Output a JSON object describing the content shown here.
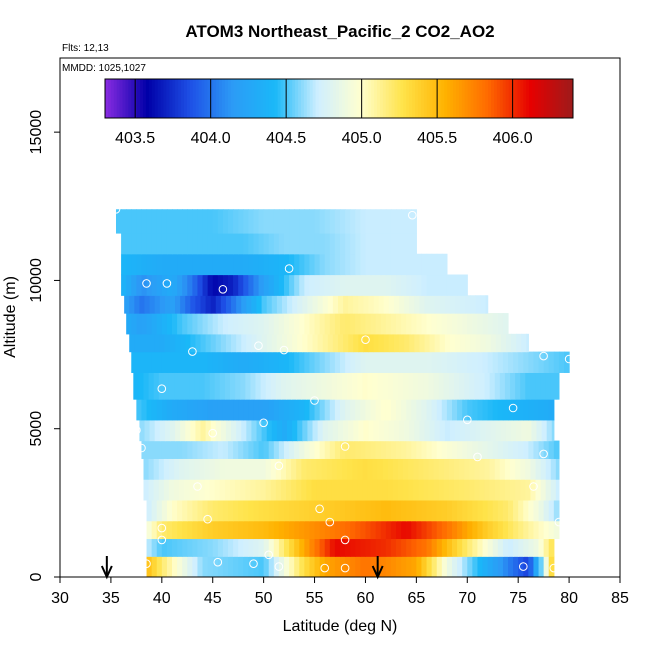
{
  "chart_data": {
    "type": "heatmap",
    "title": "ATOM3 Northeast_Pacific_2 CO2_AO2",
    "annotations": {
      "flights": "Flts: 12,13",
      "dates": "MMDD: 1025,1027"
    },
    "xlabel": "Latitude (deg N)",
    "ylabel": "Altitude (m)",
    "xlim": [
      30,
      85
    ],
    "ylim": [
      0,
      17500
    ],
    "x_ticks": [
      "30",
      "35",
      "40",
      "45",
      "50",
      "55",
      "60",
      "65",
      "70",
      "75",
      "80",
      "85"
    ],
    "y_ticks": [
      "0",
      "5000",
      "10000",
      "15000"
    ],
    "colorbar": {
      "range": [
        403.3,
        406.4
      ],
      "tick_labels": [
        "403.5",
        "404.0",
        "404.5",
        "405.0",
        "405.5",
        "406.0"
      ],
      "tick_values": [
        403.5,
        404.0,
        404.5,
        405.0,
        405.5,
        406.0
      ],
      "segment_boundaries": [
        403.5,
        404.0,
        404.5,
        405.0,
        405.5,
        406.0
      ],
      "palette": [
        "#8A2BE2",
        "#0000A8",
        "#1E50E6",
        "#2C9BF6",
        "#1AB8F8",
        "#CFEFFF",
        "#FFFFD0",
        "#FFE34A",
        "#FFB200",
        "#FF6A00",
        "#E60000",
        "#9E1B1B"
      ]
    },
    "bands": [
      {
        "alt": [
          0,
          700
        ],
        "lat": [
          38.5,
          78.5
        ],
        "profile": [
          [
            38.5,
            405.5
          ],
          [
            40,
            405.2
          ],
          [
            44,
            404.6
          ],
          [
            50,
            404.5
          ],
          [
            54,
            405.3
          ],
          [
            56,
            405.6
          ],
          [
            60,
            405.8
          ],
          [
            65,
            405.6
          ],
          [
            68,
            404.9
          ],
          [
            72,
            404.3
          ],
          [
            76,
            403.8
          ],
          [
            77.5,
            404.7
          ],
          [
            78.5,
            405.5
          ]
        ]
      },
      {
        "alt": [
          700,
          1300
        ],
        "lat": [
          38.5,
          78.5
        ],
        "profile": [
          [
            38.5,
            404.7
          ],
          [
            40,
            404.5
          ],
          [
            45,
            404.6
          ],
          [
            50,
            404.8
          ],
          [
            54,
            405.6
          ],
          [
            57,
            406.1
          ],
          [
            62,
            406.0
          ],
          [
            66,
            405.8
          ],
          [
            70,
            405.2
          ],
          [
            74,
            404.7
          ],
          [
            77,
            404.9
          ],
          [
            78.5,
            405.3
          ]
        ]
      },
      {
        "alt": [
          1300,
          1900
        ],
        "lat": [
          38.5,
          79
        ],
        "profile": [
          [
            38.5,
            404.9
          ],
          [
            40,
            405.2
          ],
          [
            45,
            405.4
          ],
          [
            50,
            405.5
          ],
          [
            55,
            405.7
          ],
          [
            60,
            405.9
          ],
          [
            64,
            406.1
          ],
          [
            68,
            405.8
          ],
          [
            72,
            405.4
          ],
          [
            76,
            405.1
          ],
          [
            79,
            404.9
          ]
        ]
      },
      {
        "alt": [
          1900,
          2600
        ],
        "lat": [
          38.5,
          79
        ],
        "profile": [
          [
            38.5,
            404.7
          ],
          [
            41,
            405.0
          ],
          [
            45,
            405.2
          ],
          [
            50,
            405.3
          ],
          [
            56,
            405.4
          ],
          [
            62,
            405.5
          ],
          [
            68,
            405.4
          ],
          [
            74,
            405.2
          ],
          [
            77,
            404.9
          ],
          [
            79,
            404.6
          ]
        ]
      },
      {
        "alt": [
          2600,
          3300
        ],
        "lat": [
          38.2,
          79
        ],
        "profile": [
          [
            38.2,
            404.7
          ],
          [
            41,
            404.9
          ],
          [
            45,
            405.0
          ],
          [
            50,
            405.1
          ],
          [
            55,
            405.3
          ],
          [
            62,
            405.3
          ],
          [
            70,
            405.2
          ],
          [
            76,
            405.1
          ],
          [
            79,
            404.7
          ]
        ]
      },
      {
        "alt": [
          3300,
          4000
        ],
        "lat": [
          38.2,
          79
        ],
        "profile": [
          [
            38.2,
            404.6
          ],
          [
            42,
            404.8
          ],
          [
            46,
            404.9
          ],
          [
            50,
            404.9
          ],
          [
            54,
            405.2
          ],
          [
            60,
            405.3
          ],
          [
            66,
            405.2
          ],
          [
            72,
            405.1
          ],
          [
            76,
            404.9
          ],
          [
            79,
            404.6
          ]
        ]
      },
      {
        "alt": [
          4000,
          4600
        ],
        "lat": [
          38,
          79
        ],
        "profile": [
          [
            38,
            404.6
          ],
          [
            42,
            404.6
          ],
          [
            46,
            404.7
          ],
          [
            50,
            404.5
          ],
          [
            54,
            404.9
          ],
          [
            58,
            405.2
          ],
          [
            64,
            405.1
          ],
          [
            70,
            404.9
          ],
          [
            76,
            404.7
          ],
          [
            79,
            404.5
          ]
        ]
      },
      {
        "alt": [
          4600,
          5300
        ],
        "lat": [
          37.8,
          78.5
        ],
        "profile": [
          [
            37.8,
            404.6
          ],
          [
            41,
            404.8
          ],
          [
            44,
            405.1
          ],
          [
            48,
            404.7
          ],
          [
            52,
            404.3
          ],
          [
            56,
            404.8
          ],
          [
            60,
            405.0
          ],
          [
            64,
            404.9
          ],
          [
            68,
            404.7
          ],
          [
            72,
            404.8
          ],
          [
            76,
            404.9
          ],
          [
            78.5,
            404.6
          ]
        ]
      },
      {
        "alt": [
          5300,
          6000
        ],
        "lat": [
          37.5,
          78.5
        ],
        "profile": [
          [
            37.5,
            404.5
          ],
          [
            41,
            404.3
          ],
          [
            45,
            404.2
          ],
          [
            50,
            404.2
          ],
          [
            54,
            404.4
          ],
          [
            58,
            404.8
          ],
          [
            62,
            405.0
          ],
          [
            66,
            404.8
          ],
          [
            70,
            404.5
          ],
          [
            74,
            404.4
          ],
          [
            78.5,
            404.3
          ]
        ]
      },
      {
        "alt": [
          6000,
          6900
        ],
        "lat": [
          37.2,
          79
        ],
        "profile": [
          [
            37.2,
            404.4
          ],
          [
            40,
            404.5
          ],
          [
            44,
            404.5
          ],
          [
            48,
            404.6
          ],
          [
            52,
            404.8
          ],
          [
            56,
            404.9
          ],
          [
            60,
            405.0
          ],
          [
            66,
            404.9
          ],
          [
            72,
            404.7
          ],
          [
            76,
            404.5
          ],
          [
            79,
            404.5
          ]
        ]
      },
      {
        "alt": [
          6900,
          7600
        ],
        "lat": [
          37,
          80
        ],
        "profile": [
          [
            37,
            404.4
          ],
          [
            40,
            404.4
          ],
          [
            44,
            404.4
          ],
          [
            48,
            404.3
          ],
          [
            52,
            404.4
          ],
          [
            56,
            404.6
          ],
          [
            60,
            404.8
          ],
          [
            66,
            404.8
          ],
          [
            72,
            404.7
          ],
          [
            76,
            404.6
          ],
          [
            80,
            404.5
          ]
        ]
      },
      {
        "alt": [
          7600,
          8200
        ],
        "lat": [
          36.8,
          76
        ],
        "profile": [
          [
            36.8,
            404.3
          ],
          [
            40,
            404.3
          ],
          [
            44,
            404.5
          ],
          [
            48,
            404.7
          ],
          [
            52,
            404.9
          ],
          [
            56,
            405.1
          ],
          [
            60,
            405.3
          ],
          [
            64,
            405.2
          ],
          [
            68,
            405.0
          ],
          [
            72,
            404.9
          ],
          [
            76,
            404.7
          ]
        ]
      },
      {
        "alt": [
          8200,
          8900
        ],
        "lat": [
          36.5,
          74
        ],
        "profile": [
          [
            36.5,
            404.3
          ],
          [
            38,
            404.2
          ],
          [
            42,
            404.5
          ],
          [
            46,
            404.7
          ],
          [
            50,
            404.8
          ],
          [
            54,
            405.0
          ],
          [
            58,
            405.2
          ],
          [
            62,
            405.1
          ],
          [
            66,
            405.0
          ],
          [
            70,
            404.9
          ],
          [
            74,
            404.8
          ]
        ]
      },
      {
        "alt": [
          8900,
          9500
        ],
        "lat": [
          36.3,
          72
        ],
        "profile": [
          [
            36.3,
            404.2
          ],
          [
            38,
            404.0
          ],
          [
            41,
            404.2
          ],
          [
            43,
            403.9
          ],
          [
            45,
            403.7
          ],
          [
            47,
            404.0
          ],
          [
            50,
            404.5
          ],
          [
            54,
            404.8
          ],
          [
            58,
            405.1
          ],
          [
            62,
            405.0
          ],
          [
            66,
            404.8
          ],
          [
            72,
            404.7
          ]
        ]
      },
      {
        "alt": [
          9500,
          10200
        ],
        "lat": [
          36,
          70
        ],
        "profile": [
          [
            36,
            404.4
          ],
          [
            38,
            404.1
          ],
          [
            41,
            404.3
          ],
          [
            43,
            404.0
          ],
          [
            45,
            403.6
          ],
          [
            47,
            403.7
          ],
          [
            50,
            404.2
          ],
          [
            54,
            404.7
          ],
          [
            58,
            404.8
          ],
          [
            62,
            404.8
          ],
          [
            66,
            404.7
          ],
          [
            70,
            404.7
          ]
        ]
      },
      {
        "alt": [
          10200,
          10900
        ],
        "lat": [
          36,
          68
        ],
        "profile": [
          [
            36,
            404.4
          ],
          [
            40,
            404.3
          ],
          [
            44,
            404.3
          ],
          [
            48,
            404.3
          ],
          [
            52,
            404.4
          ],
          [
            56,
            404.6
          ],
          [
            60,
            404.7
          ],
          [
            64,
            404.7
          ],
          [
            68,
            404.7
          ]
        ]
      },
      {
        "alt": [
          10900,
          11600
        ],
        "lat": [
          36,
          65
        ],
        "profile": [
          [
            36,
            404.5
          ],
          [
            40,
            404.5
          ],
          [
            44,
            404.5
          ],
          [
            48,
            404.5
          ],
          [
            52,
            404.6
          ],
          [
            56,
            404.6
          ],
          [
            60,
            404.7
          ],
          [
            65,
            404.7
          ]
        ]
      },
      {
        "alt": [
          11600,
          12400
        ],
        "lat": [
          35.5,
          65
        ],
        "profile": [
          [
            35.5,
            404.5
          ],
          [
            40,
            404.5
          ],
          [
            45,
            404.5
          ],
          [
            50,
            404.6
          ],
          [
            55,
            404.6
          ],
          [
            60,
            404.7
          ],
          [
            65,
            404.7
          ]
        ]
      }
    ],
    "sample_points": [
      [
        35.5,
        12400
      ],
      [
        64.6,
        12200
      ],
      [
        52.5,
        10400
      ],
      [
        71.5,
        10300
      ],
      [
        38.5,
        9900
      ],
      [
        40.5,
        9900
      ],
      [
        46,
        9700
      ],
      [
        60,
        8000
      ],
      [
        43,
        7600
      ],
      [
        49.5,
        7800
      ],
      [
        52,
        7650
      ],
      [
        77.5,
        7450
      ],
      [
        80,
        7350
      ],
      [
        40,
        6350
      ],
      [
        55,
        5950
      ],
      [
        74.5,
        5700
      ],
      [
        50,
        5200
      ],
      [
        70,
        5300
      ],
      [
        37.5,
        4950
      ],
      [
        45,
        4850
      ],
      [
        58,
        4400
      ],
      [
        38,
        4350
      ],
      [
        71,
        4050
      ],
      [
        77.5,
        4150
      ],
      [
        51.5,
        3750
      ],
      [
        43.5,
        3050
      ],
      [
        76.5,
        3050
      ],
      [
        55.5,
        2300
      ],
      [
        44.5,
        1950
      ],
      [
        56.5,
        1850
      ],
      [
        79,
        1850
      ],
      [
        40,
        1650
      ],
      [
        40,
        1250
      ],
      [
        58,
        1250
      ],
      [
        50.5,
        750
      ],
      [
        38.5,
        450
      ],
      [
        45.5,
        500
      ],
      [
        49,
        450
      ],
      [
        51.5,
        350
      ],
      [
        56,
        300
      ],
      [
        58,
        300
      ],
      [
        75.5,
        350
      ],
      [
        78.5,
        300
      ],
      [
        79,
        450
      ]
    ],
    "arrows_lat": [
      34.6,
      61.2
    ]
  }
}
